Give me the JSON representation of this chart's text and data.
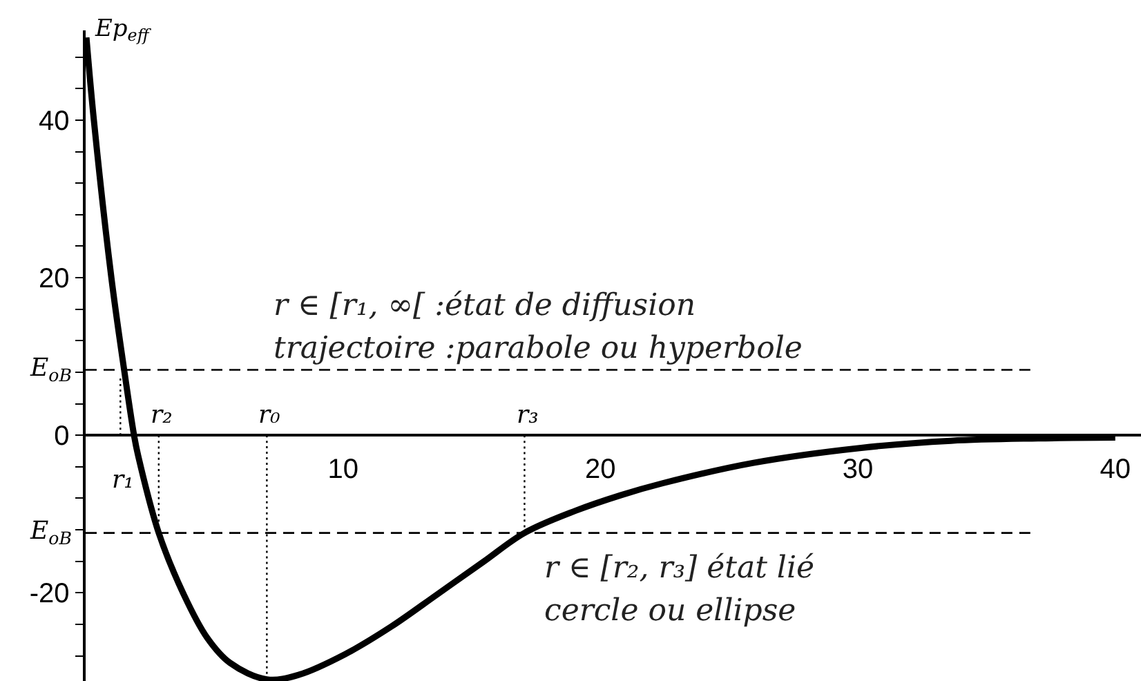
{
  "chart_data": {
    "type": "line",
    "ylabel": "Ep$_{eff}$",
    "line_style": "solid",
    "xlim": [
      0,
      41
    ],
    "ylim": [
      -31.2,
      51.4
    ],
    "xticks": [
      10,
      20,
      30,
      40
    ],
    "yticks": [
      {
        "value": -28,
        "label": null
      },
      {
        "value": -24,
        "label": null
      },
      -20,
      {
        "value": -16,
        "label": null
      },
      {
        "value": -12,
        "label": null
      },
      {
        "value": -8,
        "label": null
      },
      {
        "value": -4,
        "label": null
      },
      0,
      {
        "value": 4,
        "label": null
      },
      {
        "value": 8,
        "label": null
      },
      {
        "value": 12,
        "label": null
      },
      {
        "value": 16,
        "label": null
      },
      20,
      {
        "value": 24,
        "label": null
      },
      {
        "value": 28,
        "label": null
      },
      {
        "value": 32,
        "label": null
      },
      {
        "value": 36,
        "label": null
      },
      40,
      {
        "value": 44,
        "label": null
      },
      {
        "value": 48,
        "label": null
      }
    ],
    "series": [
      {
        "color": "#000000",
        "x": [
          0.03,
          0.32,
          1.0,
          1.5,
          1.88,
          2.04,
          2.84,
          3.81,
          4.72,
          5.61,
          7.04,
          8.29,
          10.08,
          11.87,
          13.66,
          15.44,
          17.05,
          19.02,
          20.8,
          22.41,
          25.95,
          30.13,
          33.62,
          37,
          40
        ],
        "values": [
          50.5,
          40,
          20,
          8.2,
          0,
          -2.6,
          -12.4,
          -20.2,
          -25.7,
          -28.9,
          -31.0,
          -30.4,
          -27.8,
          -24.3,
          -20.2,
          -16.1,
          -12.4,
          -9.6,
          -7.6,
          -6.1,
          -3.5,
          -1.6,
          -0.7,
          -0.4,
          -0.3
        ]
      },
      {
        "color": "#000000",
        "line_style": "dashed",
        "x": [
          0,
          36.7
        ],
        "values": [
          8.3,
          8.3
        ]
      },
      {
        "color": "#000000",
        "line_style": "dashed",
        "x": [
          0,
          36.7
        ],
        "values": [
          -12.4,
          -12.4
        ]
      },
      {
        "color": "#000000",
        "line_style": "dotted",
        "x": [
          1.35,
          1.35
        ],
        "values": [
          0,
          7.2
        ]
      },
      {
        "color": "#000000",
        "line_style": "dotted",
        "x": [
          2.84,
          2.84
        ],
        "values": [
          0,
          -12.4
        ]
      },
      {
        "color": "#000000",
        "line_style": "dotted",
        "x": [
          7.04,
          7.04
        ],
        "values": [
          0,
          -31.0
        ]
      },
      {
        "color": "#000000",
        "line_style": "dotted",
        "x": [
          17.05,
          17.05
        ],
        "values": [
          0,
          -12.4
        ]
      }
    ],
    "annotations": [
      {
        "text": "E$_{oB}$",
        "x": 0,
        "y": 8.3
      },
      {
        "text": "E$_{oB}$",
        "x": 0,
        "y": -12.4
      },
      {
        "text": "r₁",
        "x": 1.35,
        "y": 0
      },
      {
        "text": "r₂",
        "x": 2.84,
        "y": 0
      },
      {
        "text": "r₀",
        "x": 7.04,
        "y": 0
      },
      {
        "text": "r₃",
        "x": 17.05,
        "y": 0
      },
      {
        "text": "r ∈ [r₁, ∞[ :état de diffusion\ntrajectoire :parabole ou hyperbole",
        "x": 7.2,
        "y": 8.3
      },
      {
        "text": "r ∈ [r₂, r₃] état lié\ncercle ou ellipse",
        "x": 17.7,
        "y": -12.4
      }
    ]
  }
}
